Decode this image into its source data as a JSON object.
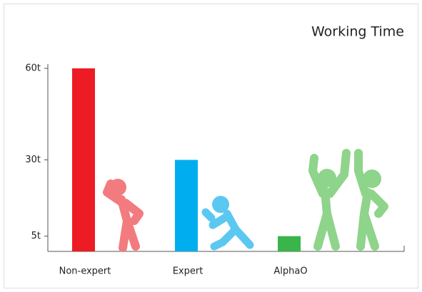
{
  "chart_data": {
    "type": "bar",
    "title": "Working Time",
    "categories": [
      "Non-expert",
      "Expert",
      "AlphaO"
    ],
    "values": [
      60,
      30,
      5
    ],
    "colors": [
      "#ed1c24",
      "#00aeef",
      "#39b54a"
    ],
    "ylim": [
      0,
      60
    ],
    "yticks": [
      {
        "value": 5,
        "label": "5t"
      },
      {
        "value": 30,
        "label": "30t"
      },
      {
        "value": 60,
        "label": "60t"
      }
    ]
  }
}
